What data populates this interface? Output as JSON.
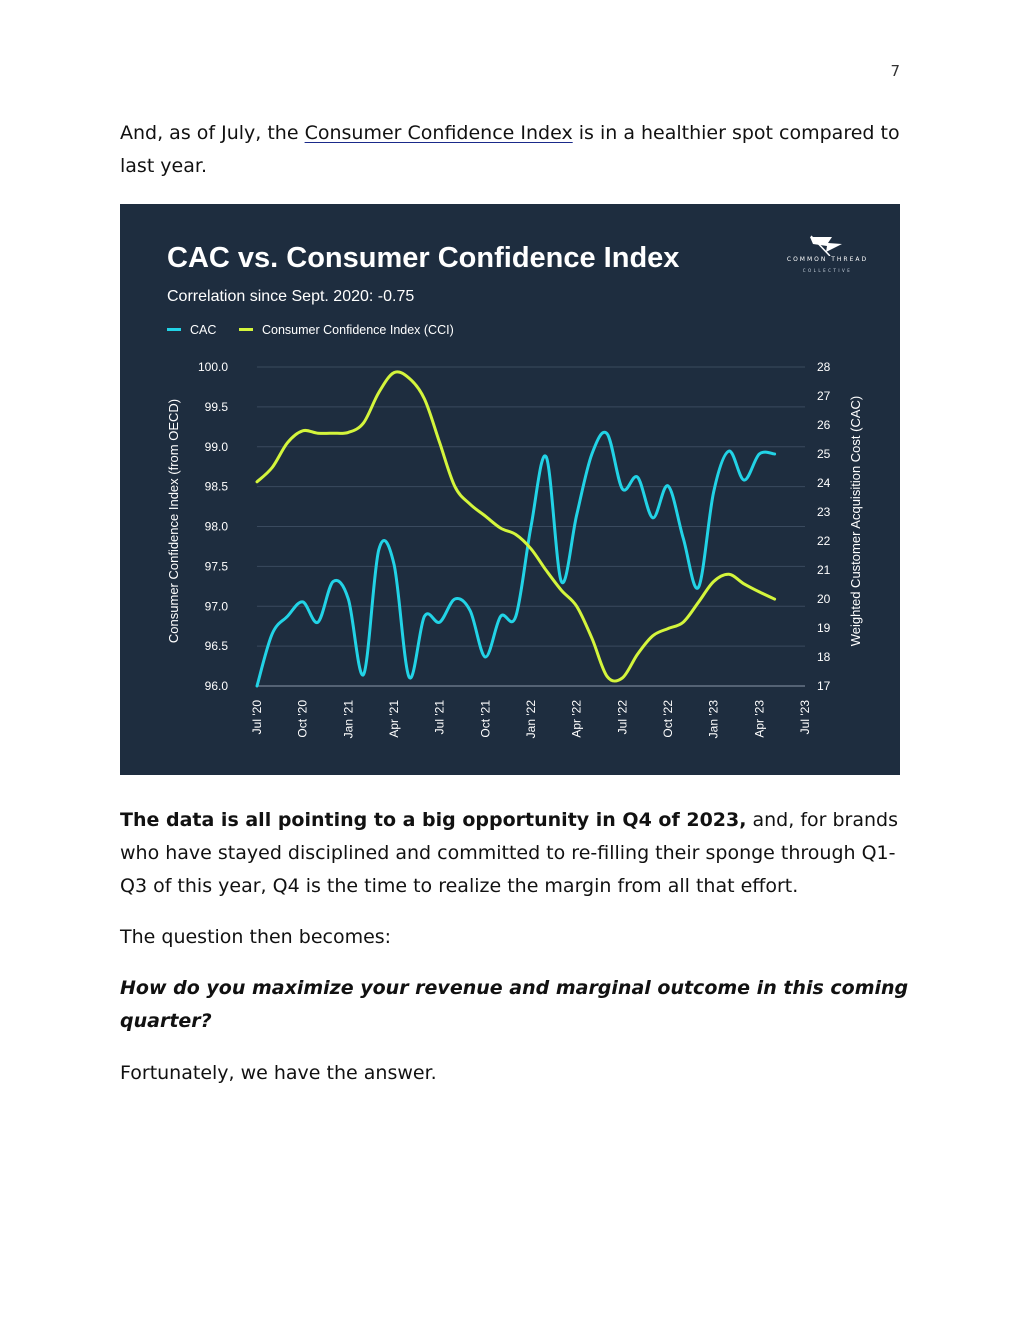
{
  "page_number": "7",
  "intro": {
    "before": "And, as of July, the ",
    "link": "Consumer Confidence Index",
    "after": " is in a healthier spot compared to last year."
  },
  "conclusion": {
    "bold": "The data is all pointing to a big opportunity in Q4 of 2023,",
    "rest": " and, for brands who have stayed disciplined and committed to re-filling their sponge through Q1-Q3 of this year, Q4 is the time to realize the margin from all that effort."
  },
  "question_lead": "The question then becomes:",
  "question": "How do you maximize your revenue and marginal outcome in this coming quarter?",
  "answer": "Fortunately, we have the answer.",
  "brand": {
    "top": "COMMON THREAD",
    "bottom": "COLLECTIVE"
  },
  "colors": {
    "background": "#1e2d3f",
    "cac": "#22d3e6",
    "cci": "#d4f53c",
    "grid": "#3a4a5e",
    "text": "#ffffff"
  },
  "chart_data": {
    "type": "line",
    "title": "CAC vs. Consumer Confidence Index",
    "subtitle": "Correlation since Sept. 2020: -0.75",
    "legend": [
      "CAC",
      "Consumer Confidence Index (CCI)"
    ],
    "legend_position": "top-left",
    "ylabel_left": "Consumer Confidence Index (from OECD)",
    "ylabel_right": "Weighted Customer Acquisition Cost (CAC)",
    "x_ticks": [
      "Jul '20",
      "Oct '20",
      "Jan '21",
      "Apr '21",
      "Jul '21",
      "Oct '21",
      "Jan '22",
      "Apr '22",
      "Jul '22",
      "Oct '22",
      "Jan '23",
      "Apr '23",
      "Jul '23"
    ],
    "x_range": [
      "2020-07",
      "2023-07"
    ],
    "y_left_ticks": [
      "96.0",
      "96.5",
      "97.0",
      "97.5",
      "98.0",
      "98.5",
      "99.0",
      "99.5",
      "100.0"
    ],
    "y_left_range": [
      96.0,
      100.0
    ],
    "y_right_ticks": [
      "17",
      "18",
      "19",
      "20",
      "21",
      "22",
      "23",
      "24",
      "25",
      "26",
      "27",
      "28"
    ],
    "y_right_range": [
      17,
      28
    ],
    "grid": "horizontal",
    "series": [
      {
        "name": "CAC",
        "axis": "right",
        "x": [
          "2020-07",
          "2020-08",
          "2020-09",
          "2020-10",
          "2020-11",
          "2020-12",
          "2021-01",
          "2021-02",
          "2021-03",
          "2021-04",
          "2021-05",
          "2021-06",
          "2021-07",
          "2021-08",
          "2021-09",
          "2021-10",
          "2021-11",
          "2021-12",
          "2022-01",
          "2022-02",
          "2022-03",
          "2022-04",
          "2022-05",
          "2022-06",
          "2022-07",
          "2022-08",
          "2022-09",
          "2022-10",
          "2022-11",
          "2022-12",
          "2023-01",
          "2023-02",
          "2023-03",
          "2023-04",
          "2023-05"
        ],
        "values": [
          17.0,
          18.8,
          19.4,
          19.9,
          19.2,
          20.6,
          20.0,
          17.4,
          21.7,
          21.2,
          17.3,
          19.4,
          19.2,
          20.0,
          19.6,
          18.0,
          19.4,
          19.4,
          22.5,
          24.9,
          20.6,
          22.9,
          25.0,
          25.7,
          23.8,
          24.2,
          22.8,
          23.9,
          22.1,
          20.4,
          23.7,
          25.1,
          24.1,
          25.0,
          25.0
        ]
      },
      {
        "name": "Consumer Confidence Index (CCI)",
        "axis": "left",
        "x": [
          "2020-07",
          "2020-08",
          "2020-09",
          "2020-10",
          "2020-11",
          "2020-12",
          "2021-01",
          "2021-02",
          "2021-03",
          "2021-04",
          "2021-05",
          "2021-06",
          "2021-07",
          "2021-08",
          "2021-09",
          "2021-10",
          "2021-11",
          "2021-12",
          "2022-01",
          "2022-02",
          "2022-03",
          "2022-04",
          "2022-05",
          "2022-06",
          "2022-07",
          "2022-08",
          "2022-09",
          "2022-10",
          "2022-11",
          "2022-12",
          "2023-01",
          "2023-02",
          "2023-03",
          "2023-04",
          "2023-05"
        ],
        "values": [
          98.56,
          98.74,
          99.05,
          99.2,
          99.17,
          99.17,
          99.18,
          99.3,
          99.68,
          99.93,
          99.86,
          99.6,
          99.05,
          98.5,
          98.28,
          98.13,
          97.98,
          97.9,
          97.72,
          97.45,
          97.2,
          97.0,
          96.6,
          96.12,
          96.1,
          96.4,
          96.63,
          96.72,
          96.8,
          97.05,
          97.31,
          97.4,
          97.28,
          97.18,
          97.09
        ]
      }
    ]
  }
}
